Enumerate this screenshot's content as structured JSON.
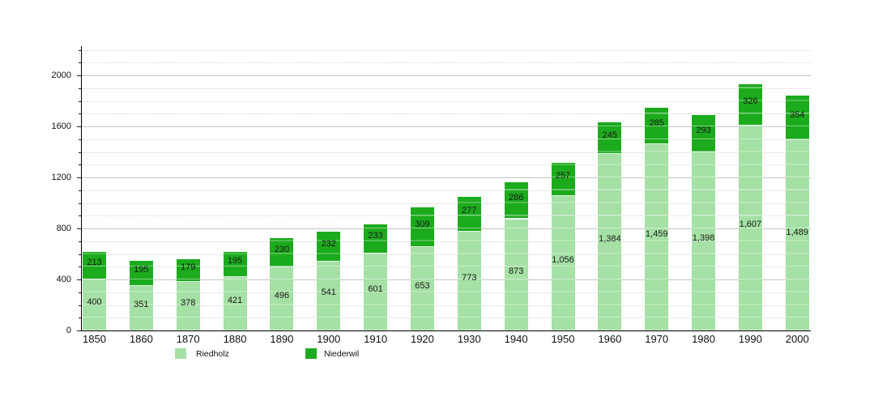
{
  "chart_data": {
    "type": "bar",
    "stacked": true,
    "categories": [
      "1850",
      "1860",
      "1870",
      "1880",
      "1890",
      "1900",
      "1910",
      "1920",
      "1930",
      "1940",
      "1950",
      "1960",
      "1970",
      "1980",
      "1990",
      "2000"
    ],
    "series": [
      {
        "name": "Riedholz",
        "color": "#a5e0a5",
        "values": [
          400,
          351,
          378,
          421,
          496,
          541,
          601,
          653,
          773,
          873,
          1056,
          1384,
          1459,
          1398,
          1607,
          1489
        ]
      },
      {
        "name": "Niederwil",
        "color": "#1cab1c",
        "values": [
          213,
          195,
          179,
          195,
          230,
          232,
          233,
          309,
          277,
          286,
          257,
          245,
          285,
          293,
          326,
          354
        ]
      }
    ],
    "ylim": [
      0,
      2200
    ],
    "ytick_major": 400,
    "ytick_minor": 100,
    "ytick_labels": [
      "0",
      "400",
      "800",
      "1200",
      "1600",
      "2000"
    ],
    "grid": true,
    "grid_color_major": "#c6c6c6",
    "grid_color_minor": "#eaeaea",
    "axis_color": "#000000",
    "value_labels": true,
    "value_label_color": "#1a1a1a",
    "legend_position": "bottom-left"
  }
}
